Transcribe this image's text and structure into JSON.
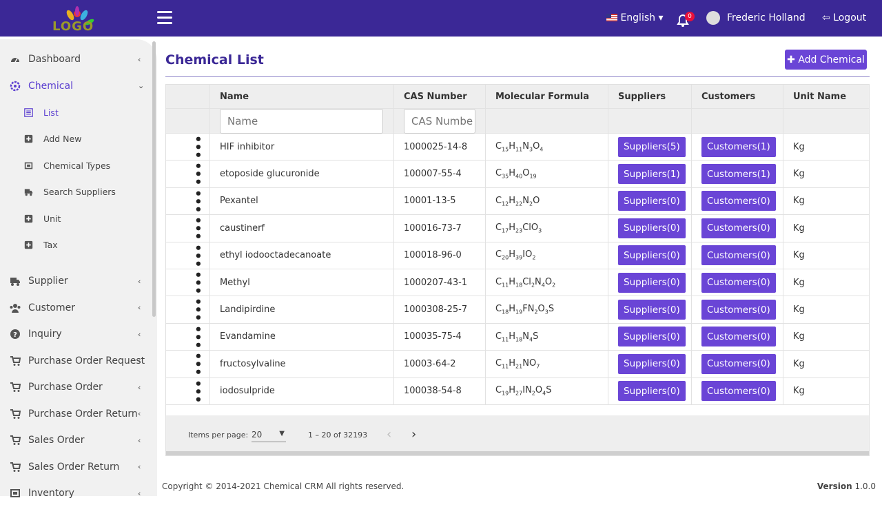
{
  "header": {
    "logo": "LOGO",
    "language": "English",
    "notifications": "0",
    "user": "Frederic Holland",
    "logout": "Logout"
  },
  "sidebar": {
    "items": [
      {
        "label": "Dashboard",
        "icon": "gauge"
      },
      {
        "label": "Chemical",
        "icon": "gear",
        "children": [
          {
            "label": "List",
            "icon": "list"
          },
          {
            "label": "Add New",
            "icon": "plus"
          },
          {
            "label": "Chemical Types",
            "icon": "box"
          },
          {
            "label": "Search Suppliers",
            "icon": "truck"
          },
          {
            "label": "Unit",
            "icon": "plus"
          },
          {
            "label": "Tax",
            "icon": "plus"
          }
        ]
      },
      {
        "label": "Supplier",
        "icon": "truck"
      },
      {
        "label": "Customer",
        "icon": "users"
      },
      {
        "label": "Inquiry",
        "icon": "question"
      },
      {
        "label": "Purchase Order Request",
        "icon": "cart"
      },
      {
        "label": "Purchase Order",
        "icon": "cart"
      },
      {
        "label": "Purchase Order Return",
        "icon": "cart"
      },
      {
        "label": "Sales Order",
        "icon": "cart"
      },
      {
        "label": "Sales Order Return",
        "icon": "cart"
      },
      {
        "label": "Inventory",
        "icon": "box"
      }
    ]
  },
  "page": {
    "title": "Chemical List",
    "add_button": "Add Chemical"
  },
  "table": {
    "columns": [
      "Name",
      "CAS Number",
      "Molecular Formula",
      "Suppliers",
      "Customers",
      "Unit Name"
    ],
    "filters": [
      "Name",
      "CAS Number"
    ],
    "rows": [
      [
        "HIF inhibitor",
        "1000025-14-8",
        "C15H11N3O4",
        "Suppliers(5)",
        "Customers(1)",
        "Kg"
      ],
      [
        "etoposide glucuronide",
        "100007-55-4",
        "C35H40O19",
        "Suppliers(1)",
        "Customers(1)",
        "Kg"
      ],
      [
        "Pexantel",
        "10001-13-5",
        "C12H22N2O",
        "Suppliers(0)",
        "Customers(0)",
        "Kg"
      ],
      [
        "caustinerf",
        "100016-73-7",
        "C17H23ClO3",
        "Suppliers(0)",
        "Customers(0)",
        "Kg"
      ],
      [
        "ethyl iodooctadecanoate",
        "100018-96-0",
        "C20H39IO2",
        "Suppliers(0)",
        "Customers(0)",
        "Kg"
      ],
      [
        "Methyl",
        "1000207-43-1",
        "C11H18Cl2N4O2",
        "Suppliers(0)",
        "Customers(0)",
        "Kg"
      ],
      [
        "Landipirdine",
        "1000308-25-7",
        "C18H19FN2O3S",
        "Suppliers(0)",
        "Customers(0)",
        "Kg"
      ],
      [
        "Evandamine",
        "100035-75-4",
        "C11H18N4S",
        "Suppliers(0)",
        "Customers(0)",
        "Kg"
      ],
      [
        "fructosylvaline",
        "10003-64-2",
        "C11H21NO7",
        "Suppliers(0)",
        "Customers(0)",
        "Kg"
      ],
      [
        "iodosulpride",
        "100038-54-8",
        "C19H27IN2O4S",
        "Suppliers(0)",
        "Customers(0)",
        "Kg"
      ]
    ]
  },
  "pagination": {
    "items_per_page_label": "Items per page:",
    "page_size": "20",
    "range": "1 – 20 of 32193"
  },
  "footer": {
    "copyright": "Copyright © 2014-2021 Chemical CRM All rights reserved.",
    "version_label": "Version",
    "version": "1.0.0"
  }
}
